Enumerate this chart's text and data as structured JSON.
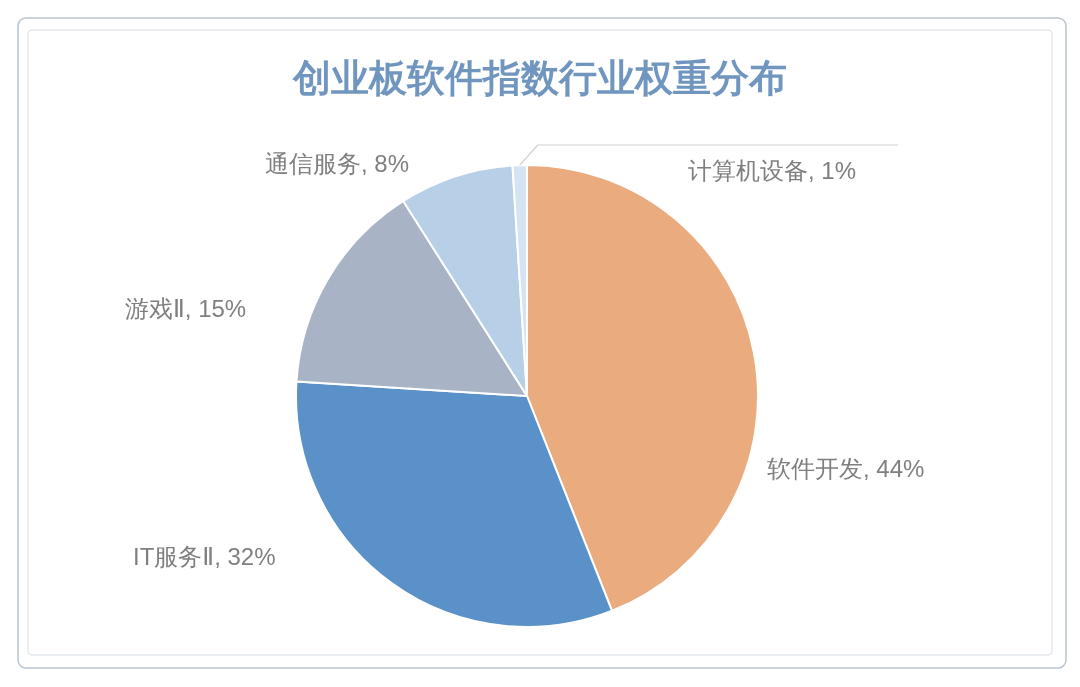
{
  "chart_data": {
    "type": "pie",
    "title": "创业板软件指数行业权重分布",
    "categories": [
      "软件开发",
      "IT服务Ⅱ",
      "游戏Ⅱ",
      "通信服务",
      "计算机设备"
    ],
    "values": [
      44,
      32,
      15,
      8,
      1
    ],
    "colors": [
      "#eaab7f",
      "#5a91c8",
      "#a8b4c6",
      "#b8cfe8",
      "#d5e3f2"
    ],
    "value_labels": [
      "44%",
      "32%",
      "15%",
      "8%",
      "1%"
    ]
  }
}
